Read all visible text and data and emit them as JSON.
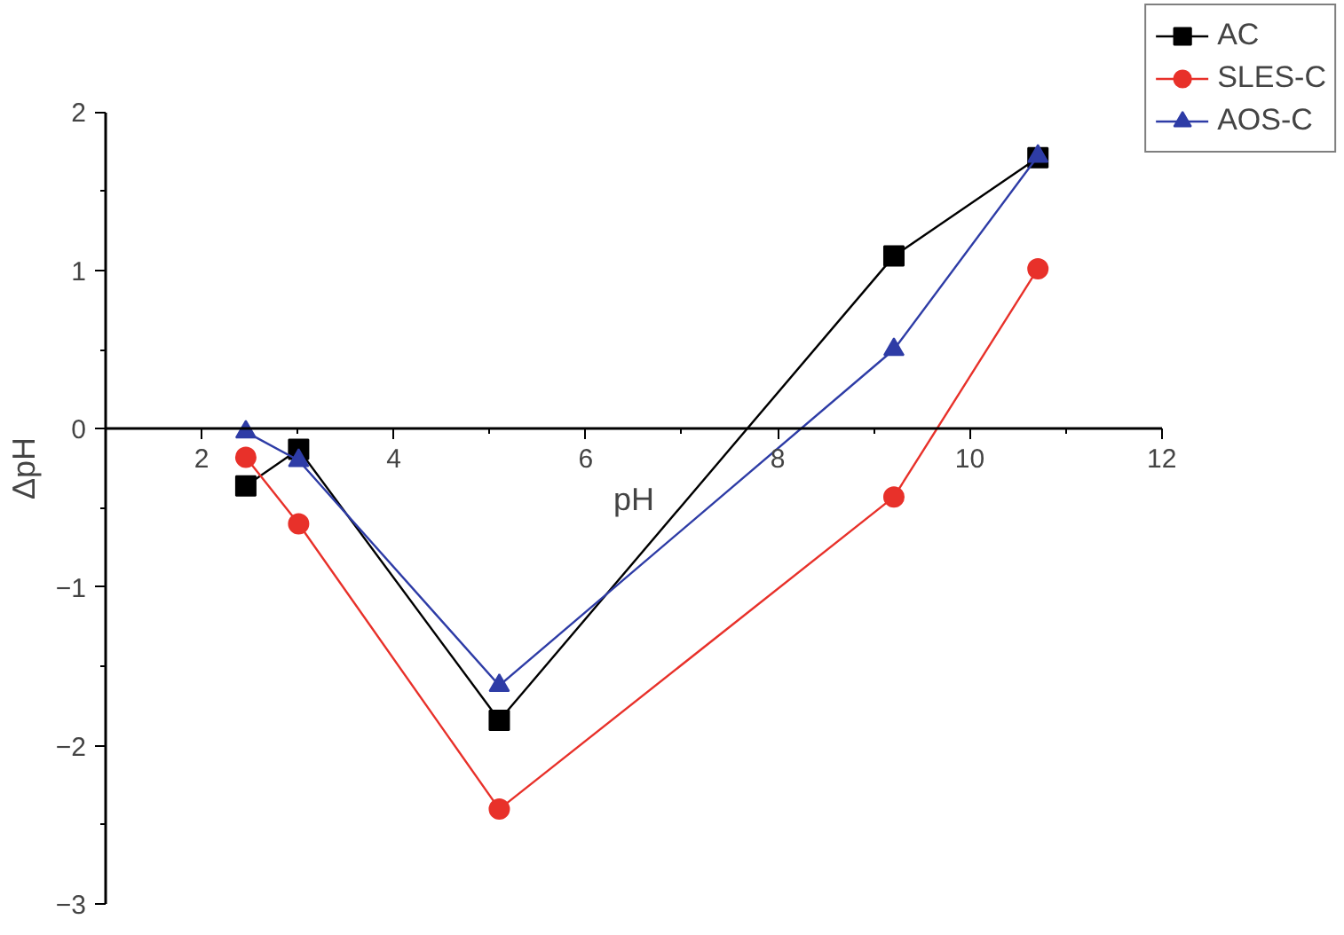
{
  "chart_data": {
    "type": "line",
    "xlabel": "pH",
    "ylabel": "ΔpH",
    "x": [
      2.46,
      3.01,
      5.1,
      9.21,
      10.71
    ],
    "series": [
      {
        "name": "AC",
        "color": "#000000",
        "marker": "square",
        "values": [
          -0.36,
          -0.13,
          -1.84,
          1.09,
          1.71
        ]
      },
      {
        "name": "SLES-C",
        "color": "#e8312a",
        "marker": "circle",
        "values": [
          -0.18,
          -0.6,
          -2.4,
          -0.43,
          1.01
        ]
      },
      {
        "name": "AOS-C",
        "color": "#2e3ca6",
        "marker": "triangle",
        "values": [
          -0.02,
          -0.2,
          -1.62,
          0.5,
          1.72
        ]
      }
    ],
    "xlim": [
      1,
      12
    ],
    "xticks": [
      2,
      4,
      6,
      8,
      10,
      12
    ],
    "ylim": [
      -3,
      2
    ],
    "yticks": [
      -3,
      -2,
      -1,
      0,
      1,
      2
    ],
    "grid": false,
    "legend": "top right",
    "line_style": "solid"
  }
}
